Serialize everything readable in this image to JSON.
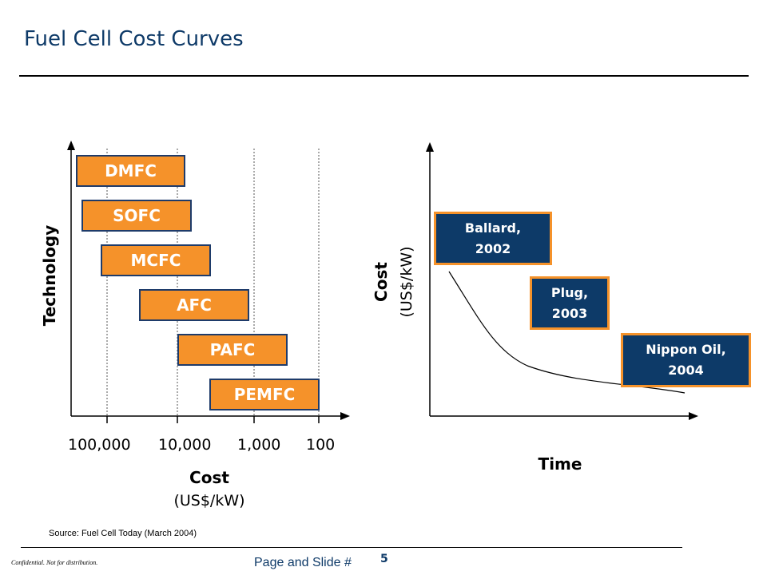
{
  "title": "Fuel Cell Cost Curves",
  "left_diagram": {
    "y_axis_label": "Technology",
    "x_axis_label": "Cost",
    "x_axis_unit": "(US$/kW)",
    "ticks": [
      "100,000",
      "10,000",
      "1,000",
      "100"
    ],
    "technologies": [
      "DMFC",
      "SOFC",
      "MCFC",
      "AFC",
      "PAFC",
      "PEMFC"
    ]
  },
  "right_diagram": {
    "y_axis_label": "Cost",
    "y_axis_unit": "(US$/kW)",
    "x_axis_label": "Time",
    "companies": [
      {
        "line1": "Ballard,",
        "line2": "2002"
      },
      {
        "line1": "Plug,",
        "line2": "2003"
      },
      {
        "line1": "Nippon Oil,",
        "line2": "2004"
      }
    ]
  },
  "colors": {
    "orange": "#f5922a",
    "navy": "#0d3a68",
    "title_blue": "#0e3a68"
  },
  "footer": {
    "source": "Source: Fuel Cell Today (March 2004)",
    "confidential": "Confidential. Not for distribution.",
    "page_label": "Page and Slide #",
    "page_number": "5"
  }
}
